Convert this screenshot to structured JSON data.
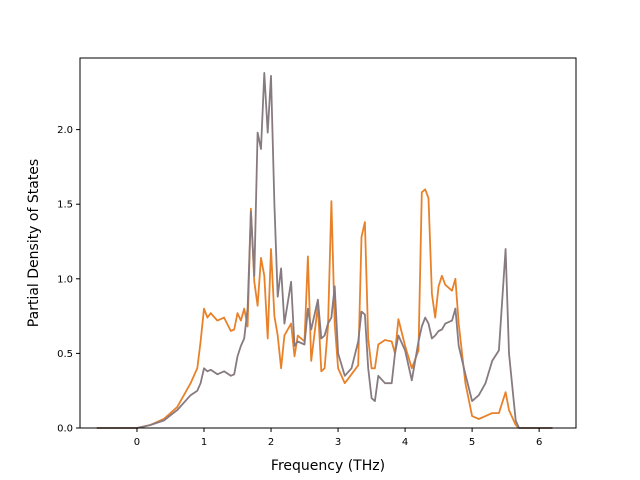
{
  "chart_data": {
    "type": "line",
    "xlabel": "Frequency (THz)",
    "ylabel": "Partial Density of States",
    "xlim": [
      -0.85,
      6.55
    ],
    "ylim": [
      0.0,
      2.48
    ],
    "xticks": [
      "0",
      "1",
      "2",
      "3",
      "4",
      "5",
      "6"
    ],
    "yticks": [
      "0.0",
      "0.5",
      "1.0",
      "1.5",
      "2.0"
    ],
    "grid": false,
    "legend": "none",
    "series": [
      {
        "color": "#e8822a",
        "points": [
          [
            -0.6,
            0.0
          ],
          [
            0.0,
            0.0
          ],
          [
            0.2,
            0.02
          ],
          [
            0.4,
            0.06
          ],
          [
            0.6,
            0.14
          ],
          [
            0.8,
            0.3
          ],
          [
            0.9,
            0.4
          ],
          [
            0.95,
            0.58
          ],
          [
            1.0,
            0.8
          ],
          [
            1.05,
            0.74
          ],
          [
            1.1,
            0.77
          ],
          [
            1.2,
            0.72
          ],
          [
            1.3,
            0.74
          ],
          [
            1.4,
            0.65
          ],
          [
            1.45,
            0.66
          ],
          [
            1.5,
            0.77
          ],
          [
            1.55,
            0.72
          ],
          [
            1.6,
            0.8
          ],
          [
            1.65,
            0.68
          ],
          [
            1.7,
            1.47
          ],
          [
            1.75,
            0.98
          ],
          [
            1.8,
            0.82
          ],
          [
            1.85,
            1.14
          ],
          [
            1.9,
            1.02
          ],
          [
            1.95,
            0.6
          ],
          [
            2.0,
            1.2
          ],
          [
            2.05,
            0.75
          ],
          [
            2.1,
            0.62
          ],
          [
            2.15,
            0.4
          ],
          [
            2.2,
            0.62
          ],
          [
            2.3,
            0.7
          ],
          [
            2.35,
            0.48
          ],
          [
            2.4,
            0.62
          ],
          [
            2.5,
            0.58
          ],
          [
            2.55,
            1.15
          ],
          [
            2.6,
            0.45
          ],
          [
            2.7,
            0.82
          ],
          [
            2.75,
            0.38
          ],
          [
            2.8,
            0.4
          ],
          [
            2.85,
            0.68
          ],
          [
            2.9,
            1.52
          ],
          [
            2.95,
            0.7
          ],
          [
            3.0,
            0.4
          ],
          [
            3.1,
            0.3
          ],
          [
            3.2,
            0.36
          ],
          [
            3.3,
            0.42
          ],
          [
            3.35,
            1.28
          ],
          [
            3.4,
            1.38
          ],
          [
            3.45,
            0.6
          ],
          [
            3.5,
            0.4
          ],
          [
            3.55,
            0.4
          ],
          [
            3.6,
            0.56
          ],
          [
            3.7,
            0.59
          ],
          [
            3.8,
            0.58
          ],
          [
            3.85,
            0.5
          ],
          [
            3.9,
            0.73
          ],
          [
            4.0,
            0.55
          ],
          [
            4.1,
            0.4
          ],
          [
            4.2,
            0.52
          ],
          [
            4.25,
            1.58
          ],
          [
            4.3,
            1.6
          ],
          [
            4.35,
            1.54
          ],
          [
            4.4,
            0.9
          ],
          [
            4.45,
            0.74
          ],
          [
            4.5,
            0.95
          ],
          [
            4.55,
            1.02
          ],
          [
            4.6,
            0.96
          ],
          [
            4.7,
            0.92
          ],
          [
            4.75,
            1.0
          ],
          [
            4.8,
            0.7
          ],
          [
            4.9,
            0.3
          ],
          [
            5.0,
            0.08
          ],
          [
            5.1,
            0.06
          ],
          [
            5.2,
            0.08
          ],
          [
            5.3,
            0.1
          ],
          [
            5.4,
            0.1
          ],
          [
            5.5,
            0.24
          ],
          [
            5.55,
            0.12
          ],
          [
            5.65,
            0.02
          ],
          [
            5.7,
            0.0
          ],
          [
            6.2,
            0.0
          ]
        ]
      },
      {
        "color": "#877a80",
        "points": [
          [
            -0.6,
            0.0
          ],
          [
            0.0,
            0.0
          ],
          [
            0.2,
            0.02
          ],
          [
            0.4,
            0.05
          ],
          [
            0.6,
            0.12
          ],
          [
            0.8,
            0.22
          ],
          [
            0.9,
            0.25
          ],
          [
            0.95,
            0.3
          ],
          [
            1.0,
            0.4
          ],
          [
            1.05,
            0.38
          ],
          [
            1.1,
            0.39
          ],
          [
            1.2,
            0.36
          ],
          [
            1.3,
            0.38
          ],
          [
            1.4,
            0.35
          ],
          [
            1.45,
            0.36
          ],
          [
            1.5,
            0.48
          ],
          [
            1.55,
            0.55
          ],
          [
            1.6,
            0.6
          ],
          [
            1.65,
            0.8
          ],
          [
            1.7,
            1.45
          ],
          [
            1.75,
            1.02
          ],
          [
            1.8,
            1.98
          ],
          [
            1.85,
            1.87
          ],
          [
            1.9,
            2.38
          ],
          [
            1.95,
            1.98
          ],
          [
            2.0,
            2.36
          ],
          [
            2.05,
            1.5
          ],
          [
            2.1,
            0.88
          ],
          [
            2.15,
            1.07
          ],
          [
            2.2,
            0.7
          ],
          [
            2.3,
            0.98
          ],
          [
            2.35,
            0.55
          ],
          [
            2.4,
            0.58
          ],
          [
            2.5,
            0.56
          ],
          [
            2.55,
            0.8
          ],
          [
            2.6,
            0.66
          ],
          [
            2.7,
            0.86
          ],
          [
            2.75,
            0.6
          ],
          [
            2.8,
            0.62
          ],
          [
            2.85,
            0.7
          ],
          [
            2.9,
            0.74
          ],
          [
            2.95,
            0.95
          ],
          [
            3.0,
            0.5
          ],
          [
            3.1,
            0.35
          ],
          [
            3.2,
            0.4
          ],
          [
            3.3,
            0.58
          ],
          [
            3.35,
            0.78
          ],
          [
            3.4,
            0.76
          ],
          [
            3.45,
            0.4
          ],
          [
            3.5,
            0.2
          ],
          [
            3.55,
            0.18
          ],
          [
            3.6,
            0.35
          ],
          [
            3.7,
            0.3
          ],
          [
            3.8,
            0.3
          ],
          [
            3.85,
            0.5
          ],
          [
            3.9,
            0.62
          ],
          [
            4.0,
            0.52
          ],
          [
            4.1,
            0.32
          ],
          [
            4.2,
            0.58
          ],
          [
            4.25,
            0.68
          ],
          [
            4.3,
            0.74
          ],
          [
            4.35,
            0.7
          ],
          [
            4.4,
            0.6
          ],
          [
            4.45,
            0.62
          ],
          [
            4.5,
            0.65
          ],
          [
            4.55,
            0.66
          ],
          [
            4.6,
            0.7
          ],
          [
            4.7,
            0.72
          ],
          [
            4.75,
            0.8
          ],
          [
            4.8,
            0.55
          ],
          [
            4.9,
            0.36
          ],
          [
            5.0,
            0.18
          ],
          [
            5.1,
            0.22
          ],
          [
            5.2,
            0.3
          ],
          [
            5.3,
            0.45
          ],
          [
            5.4,
            0.52
          ],
          [
            5.5,
            1.2
          ],
          [
            5.55,
            0.5
          ],
          [
            5.65,
            0.05
          ],
          [
            5.7,
            0.0
          ],
          [
            6.2,
            0.0
          ]
        ]
      }
    ]
  }
}
